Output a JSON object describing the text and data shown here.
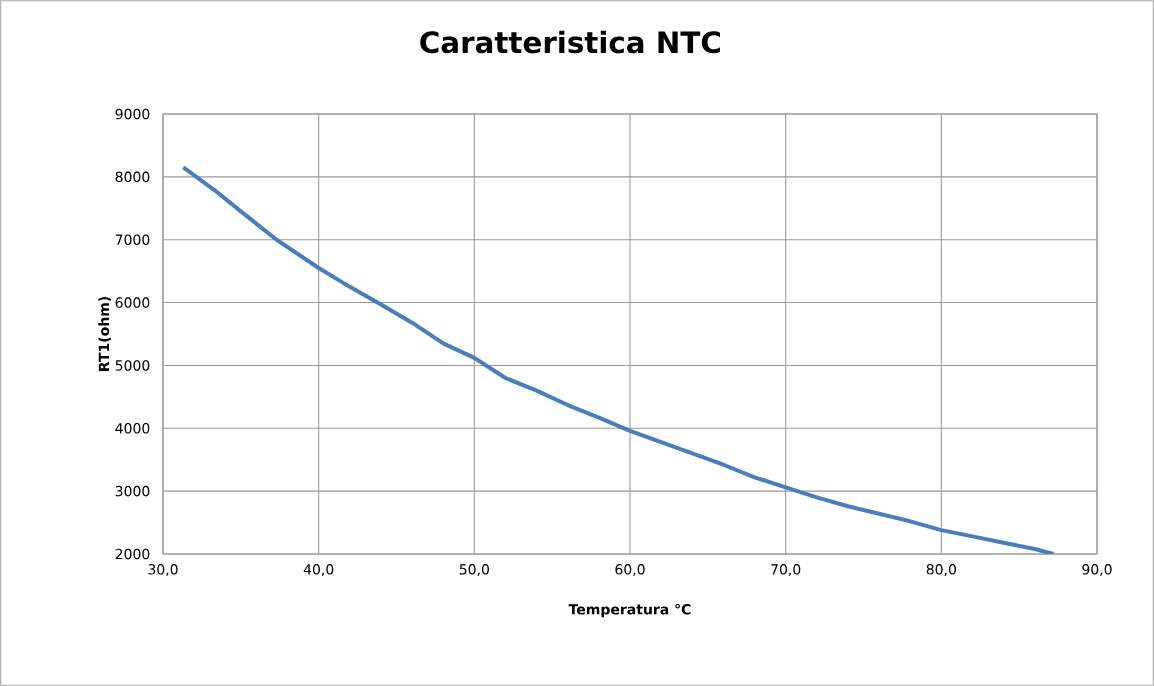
{
  "chart_data": {
    "type": "line",
    "title": "Caratteristica NTC",
    "xlabel": "Temperatura °C",
    "ylabel": "RT1(ohm)",
    "x": [
      31.3,
      31.6,
      33.3,
      35.0,
      37.3,
      40.0,
      42.0,
      44.0,
      46.0,
      48.0,
      50.0,
      52.0,
      54.0,
      56.0,
      58.0,
      60.0,
      62.0,
      64.0,
      66.0,
      68.0,
      70.0,
      72.0,
      74.0,
      76.0,
      78.0,
      80.0,
      82.0,
      84.0,
      86.0,
      87.2
    ],
    "series": [
      {
        "color": "#4a7ebb",
        "values": [
          8150,
          8100,
          7790,
          7450,
          7000,
          6550,
          6250,
          5970,
          5680,
          5350,
          5120,
          4800,
          4600,
          4370,
          4170,
          3960,
          3780,
          3600,
          3420,
          3220,
          3060,
          2900,
          2760,
          2640,
          2520,
          2380,
          2280,
          2180,
          2080,
          2000
        ]
      }
    ],
    "xlim": [
      30,
      90
    ],
    "ylim": [
      2000,
      9000
    ],
    "xticks": [
      {
        "value": 30,
        "label": "30,0"
      },
      {
        "value": 40,
        "label": "40,0"
      },
      {
        "value": 50,
        "label": "50,0"
      },
      {
        "value": 60,
        "label": "60,0"
      },
      {
        "value": 70,
        "label": "70,0"
      },
      {
        "value": 80,
        "label": "80,0"
      },
      {
        "value": 90,
        "label": "90,0"
      }
    ],
    "yticks": [
      2000,
      3000,
      4000,
      5000,
      6000,
      7000,
      8000,
      9000
    ],
    "grid": true,
    "legend": false,
    "marker": "none",
    "line_style": "solid"
  }
}
